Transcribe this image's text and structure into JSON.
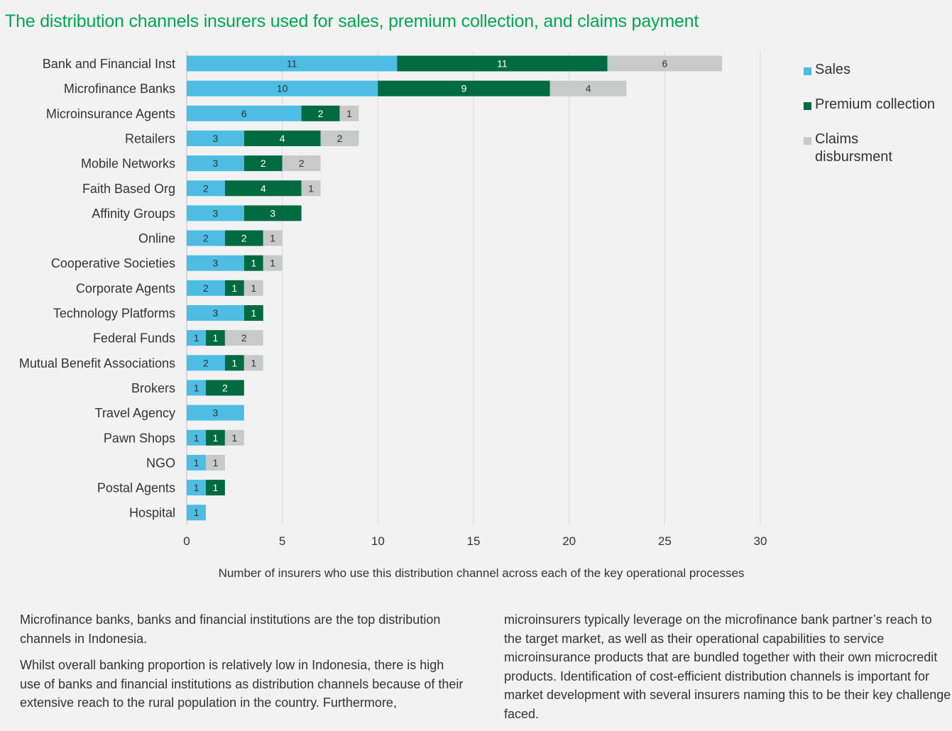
{
  "title": "The distribution channels insurers used for sales, premium collection, and claims payment",
  "chart_data": {
    "type": "bar",
    "orientation": "horizontal",
    "stacked": true,
    "categories": [
      "Bank and Financial Inst",
      "Microfinance Banks",
      "Microinsurance Agents",
      "Retailers",
      "Mobile Networks",
      "Faith Based Org",
      "Affinity Groups",
      "Online",
      "Cooperative Societies",
      "Corporate Agents",
      "Technology Platforms",
      "Federal Funds",
      "Mutual Benefit Associations",
      "Brokers",
      "Travel Agency",
      "Pawn Shops",
      "NGO",
      "Postal Agents",
      "Hospital"
    ],
    "series": [
      {
        "name": "Sales",
        "color": "#4dbde4",
        "label_color": "#333333",
        "values": [
          11,
          10,
          6,
          3,
          3,
          2,
          3,
          2,
          3,
          2,
          3,
          1,
          2,
          1,
          3,
          1,
          1,
          1,
          1
        ]
      },
      {
        "name": "Premium collection",
        "color": "#006a40",
        "label_color": "#ffffff",
        "values": [
          11,
          9,
          2,
          4,
          2,
          4,
          3,
          2,
          1,
          1,
          1,
          1,
          1,
          2,
          0,
          1,
          0,
          1,
          0
        ]
      },
      {
        "name": "Claims disbursment",
        "color": "#c8c9c9",
        "label_color": "#333333",
        "values": [
          6,
          4,
          1,
          2,
          2,
          1,
          0,
          1,
          1,
          1,
          0,
          2,
          1,
          0,
          0,
          1,
          1,
          0,
          0
        ]
      }
    ],
    "xlim": [
      0,
      30
    ],
    "xticks": [
      0,
      5,
      10,
      15,
      20,
      25,
      30
    ],
    "xlabel": "Number of insurers who use this distribution channel across each of the key operational processes",
    "ylabel": "",
    "grid": true,
    "legend_position": "right"
  },
  "legend": {
    "sales": "Sales",
    "premium": "Premium collection",
    "claims_line1": "Claims",
    "claims_line2": "disbursment"
  },
  "colors": {
    "title": "#00a651",
    "sales": "#4dbde4",
    "premium": "#006a40",
    "claims": "#c8c9c9"
  },
  "body_text": {
    "left_p1": "Microfinance banks, banks and financial institutions are the top distribution channels in Indonesia.",
    "left_p2": "Whilst overall banking proportion is relatively low in Indonesia, there is high use of banks and financial institutions as distribution channels because of their extensive reach to the rural population in the country. Furthermore,",
    "right_p1": "microinsurers typically leverage on the microfinance bank partner’s reach to the target market, as well as their operational capabilities to service microinsurance products that are bundled together with their own microcredit products. Identification of cost-efficient distribution channels is important for market development with several insurers naming this to be their key challenge faced."
  }
}
